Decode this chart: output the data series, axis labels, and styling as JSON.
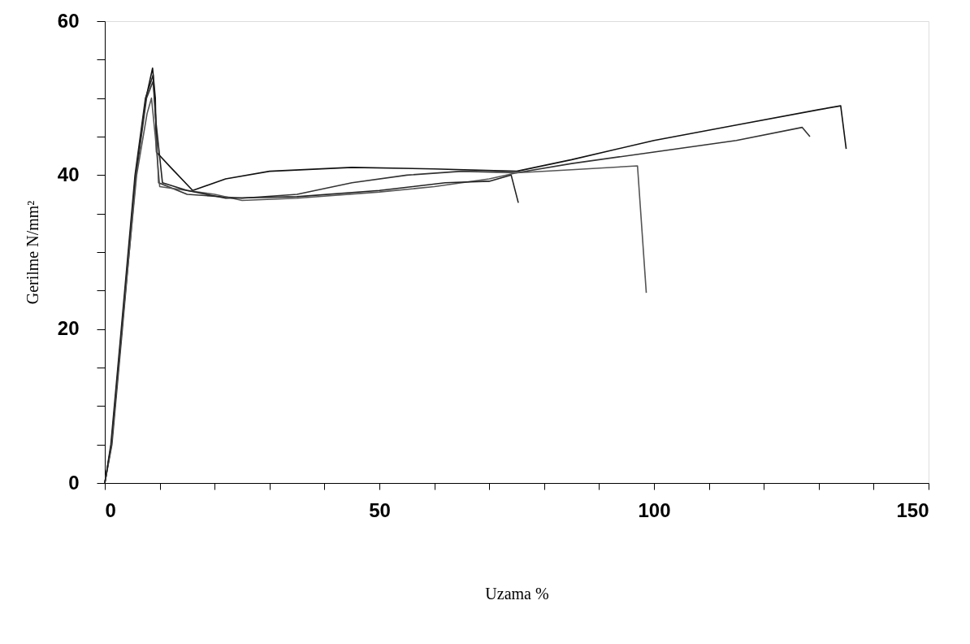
{
  "chart_data": {
    "type": "line",
    "xlabel": "Uzama %",
    "ylabel": "Gerilme N/mm²",
    "xlim": [
      0,
      150
    ],
    "ylim": [
      0,
      60
    ],
    "xticks": [
      0,
      {
        "value": 10,
        "label": null
      },
      {
        "value": 20,
        "label": null
      },
      {
        "value": 30,
        "label": null
      },
      {
        "value": 40,
        "label": null
      },
      50,
      {
        "value": 60,
        "label": null
      },
      {
        "value": 70,
        "label": null
      },
      {
        "value": 80,
        "label": null
      },
      {
        "value": 90,
        "label": null
      },
      100,
      {
        "value": 110,
        "label": null
      },
      {
        "value": 120,
        "label": null
      },
      {
        "value": 130,
        "label": null
      },
      {
        "value": 140,
        "label": null
      },
      150
    ],
    "yticks": [
      0,
      {
        "value": 5,
        "label": null
      },
      {
        "value": 10,
        "label": null
      },
      {
        "value": 15,
        "label": null
      },
      20,
      {
        "value": 25,
        "label": null
      },
      {
        "value": 30,
        "label": null
      },
      {
        "value": 35,
        "label": null
      },
      40,
      {
        "value": 45,
        "label": null
      },
      {
        "value": 50,
        "label": null
      },
      {
        "value": 55,
        "label": null
      },
      60
    ],
    "grid": false,
    "marker": "none",
    "line_style": "solid",
    "series": [
      {
        "color": "#111111",
        "x": [
          0,
          1.2,
          3.1,
          5.6,
          7.5,
          8.7,
          9.2,
          9.4,
          12,
          16,
          22,
          30,
          45,
          60,
          75,
          85,
          100,
          115,
          130,
          134,
          135
        ],
        "values": [
          0,
          5,
          20,
          40,
          50,
          53.9,
          50,
          43,
          41,
          38,
          39.5,
          40.5,
          41,
          40.8,
          40.5,
          42,
          44.5,
          46.5,
          48.5,
          49,
          43.4
        ]
      },
      {
        "color": "#333333",
        "x": [
          0,
          1.3,
          3.2,
          5.7,
          7.6,
          8.8,
          9.3,
          9.8,
          15,
          25,
          35,
          45,
          55,
          65,
          75,
          85,
          100,
          115,
          127,
          128.4
        ],
        "values": [
          0,
          5,
          20,
          40,
          50,
          52.2,
          47,
          39,
          37.5,
          37,
          37.5,
          39,
          40,
          40.5,
          40.3,
          41.5,
          43,
          44.5,
          46.2,
          45
        ]
      },
      {
        "color": "#555555",
        "x": [
          0,
          1.2,
          3.1,
          5.8,
          7.7,
          8.5,
          9.2,
          10,
          20,
          25,
          35,
          50,
          60,
          70,
          75,
          85,
          97,
          98.6
        ],
        "values": [
          0,
          5,
          20,
          40,
          48,
          50,
          45,
          38.5,
          37.5,
          36.7,
          37,
          37.8,
          38.5,
          39.5,
          40.3,
          40.7,
          41.2,
          24.7
        ]
      },
      {
        "color": "#222222",
        "x": [
          0,
          1.1,
          3.0,
          5.5,
          7.4,
          8.8,
          9.3,
          10.5,
          15,
          22,
          35,
          50,
          62,
          70,
          74,
          75.3
        ],
        "values": [
          0,
          5,
          20,
          40,
          50,
          53,
          47,
          39,
          38,
          37,
          37.2,
          38,
          39,
          39.2,
          40,
          36.4
        ]
      }
    ]
  }
}
